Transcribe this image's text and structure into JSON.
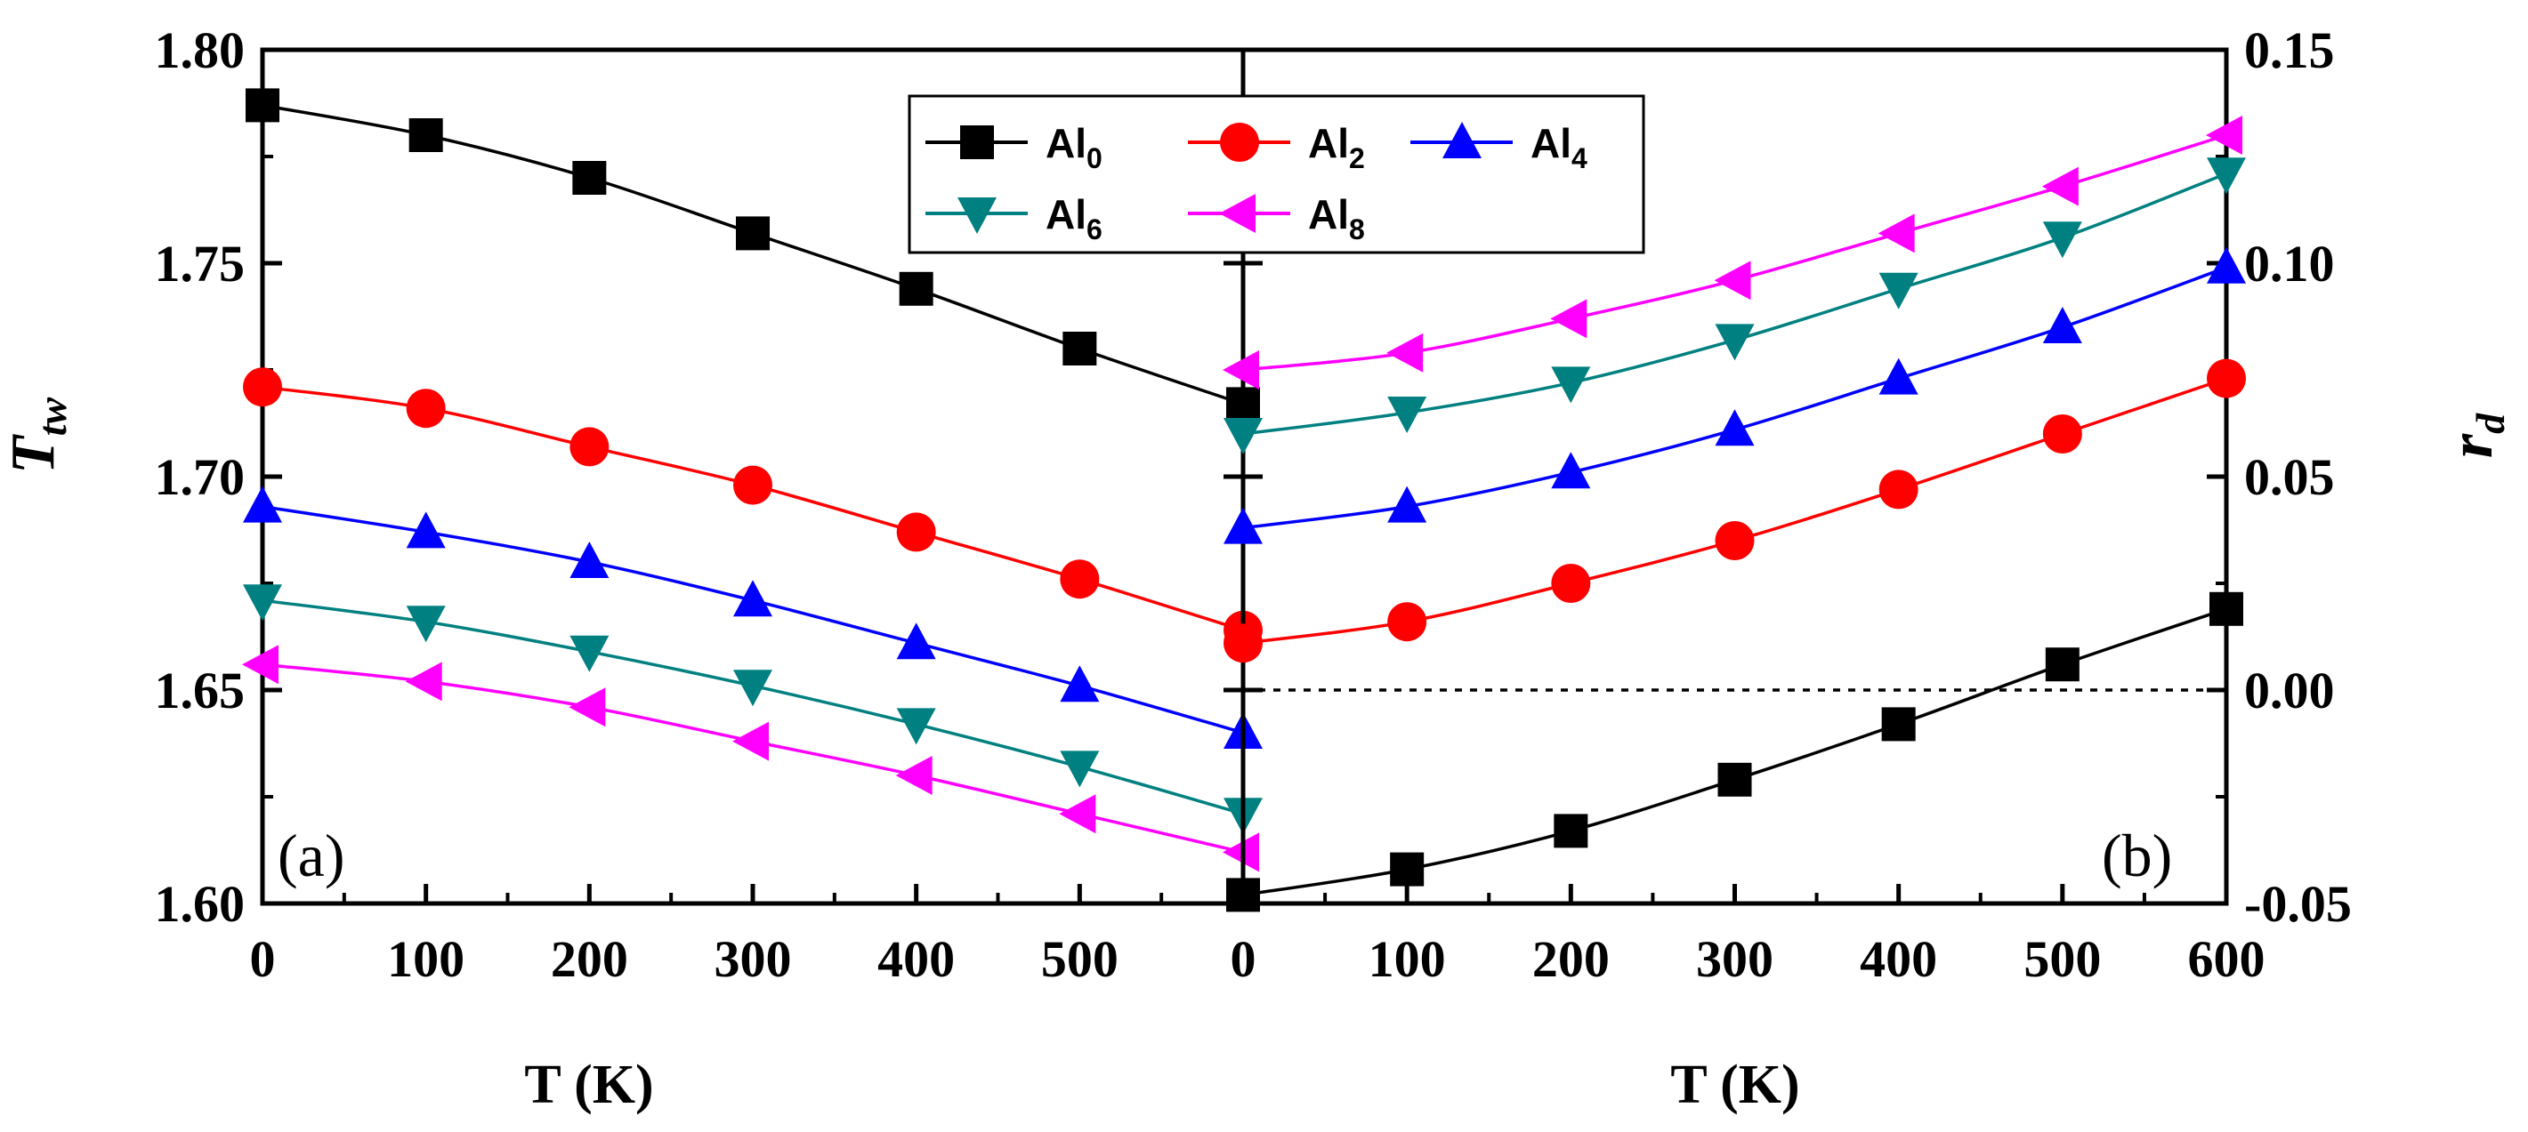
{
  "chart_data": [
    {
      "panel": "(a)",
      "type": "line",
      "xlabel": "T (K)",
      "ylabel": "T",
      "ylabel_sub": "tw",
      "xlim": [
        0,
        600
      ],
      "ylim": [
        1.6,
        1.8
      ],
      "xticks": [
        "0",
        "100",
        "200",
        "300",
        "400",
        "500"
      ],
      "yticks": [
        "1.60",
        "1.65",
        "1.70",
        "1.75",
        "1.80"
      ],
      "x": [
        0,
        100,
        200,
        300,
        400,
        500,
        600
      ],
      "series": [
        {
          "name": "Al0",
          "values": [
            1.787,
            1.78,
            1.77,
            1.757,
            1.744,
            1.73,
            1.717
          ]
        },
        {
          "name": "Al2",
          "values": [
            1.721,
            1.716,
            1.707,
            1.698,
            1.687,
            1.676,
            1.664
          ]
        },
        {
          "name": "Al4",
          "values": [
            1.693,
            1.687,
            1.68,
            1.671,
            1.661,
            1.651,
            1.64
          ]
        },
        {
          "name": "Al6",
          "values": [
            1.671,
            1.666,
            1.659,
            1.651,
            1.642,
            1.632,
            1.621
          ]
        },
        {
          "name": "Al8",
          "values": [
            1.656,
            1.652,
            1.646,
            1.638,
            1.63,
            1.621,
            1.612
          ]
        }
      ]
    },
    {
      "panel": "(b)",
      "type": "line",
      "xlabel": "T (K)",
      "ylabel": "r",
      "ylabel_sub": "d",
      "xlim": [
        0,
        600
      ],
      "ylim": [
        -0.05,
        0.15
      ],
      "xticks": [
        "0",
        "100",
        "200",
        "300",
        "400",
        "500",
        "600"
      ],
      "yticks": [
        "-0.05",
        "0.00",
        "0.05",
        "0.10",
        "0.15"
      ],
      "reference_line": 0.0,
      "x": [
        0,
        100,
        200,
        300,
        400,
        500,
        600
      ],
      "series": [
        {
          "name": "Al0",
          "values": [
            -0.048,
            -0.042,
            -0.033,
            -0.021,
            -0.008,
            0.006,
            0.019
          ]
        },
        {
          "name": "Al2",
          "values": [
            0.011,
            0.016,
            0.025,
            0.035,
            0.047,
            0.06,
            0.073
          ]
        },
        {
          "name": "Al4",
          "values": [
            0.038,
            0.043,
            0.051,
            0.061,
            0.073,
            0.085,
            0.099
          ]
        },
        {
          "name": "Al6",
          "values": [
            0.06,
            0.065,
            0.072,
            0.082,
            0.094,
            0.106,
            0.121
          ]
        },
        {
          "name": "Al8",
          "values": [
            0.075,
            0.079,
            0.087,
            0.096,
            0.107,
            0.118,
            0.13
          ]
        }
      ]
    }
  ],
  "legend": [
    {
      "base": "Al",
      "sub": "0",
      "color": "#000000",
      "marker": "square"
    },
    {
      "base": "Al",
      "sub": "2",
      "color": "#ff0000",
      "marker": "circle"
    },
    {
      "base": "Al",
      "sub": "4",
      "color": "#0000ff",
      "marker": "triangle-up"
    },
    {
      "base": "Al",
      "sub": "6",
      "color": "#008080",
      "marker": "triangle-down"
    },
    {
      "base": "Al",
      "sub": "8",
      "color": "#ff00ff",
      "marker": "triangle-left"
    }
  ]
}
